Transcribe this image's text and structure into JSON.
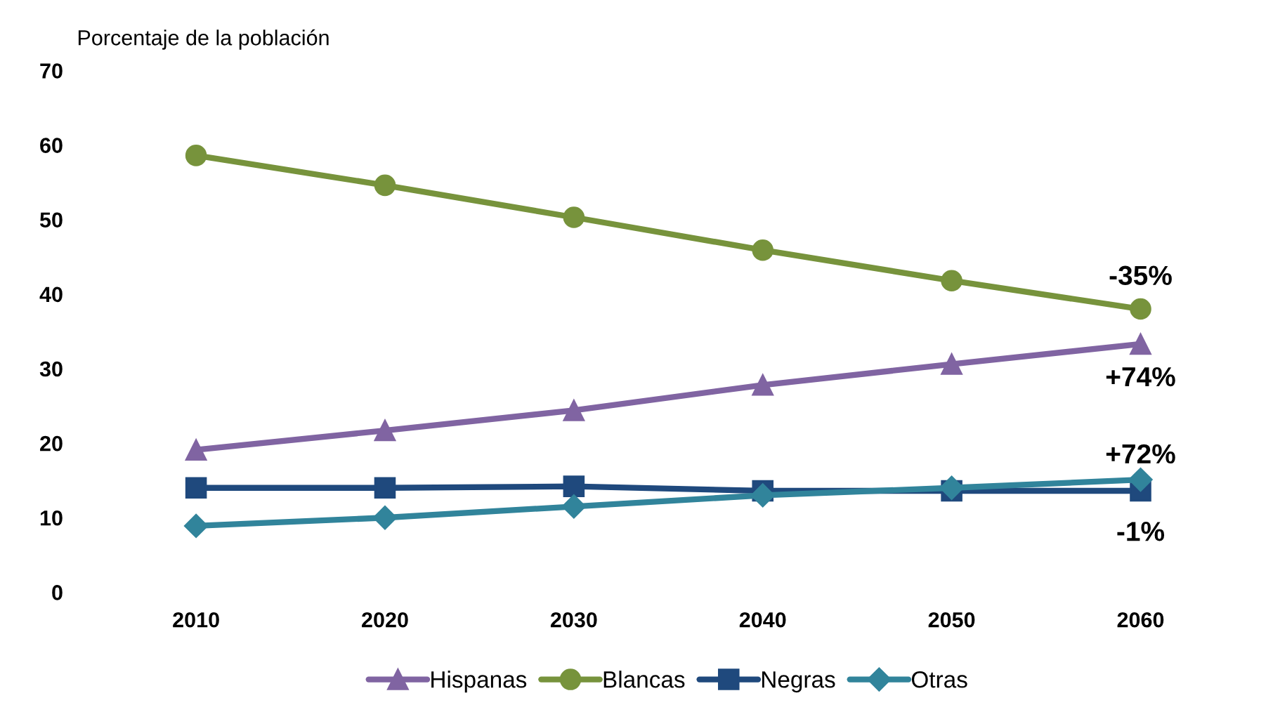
{
  "chart_data": {
    "type": "line",
    "ylabel": "Porcentaje de la población",
    "categories": [
      "2010",
      "2020",
      "2030",
      "2040",
      "2050",
      "2060"
    ],
    "ylim": [
      0,
      70
    ],
    "yticks": [
      0,
      10,
      20,
      30,
      40,
      50,
      60,
      70
    ],
    "grid": false,
    "legend": "bottom",
    "line_style": "solid",
    "series": [
      {
        "name": "Hispanas",
        "color": "#8064a2",
        "marker": "triangle",
        "values": [
          19.1,
          21.7,
          24.4,
          27.8,
          30.6,
          33.3
        ]
      },
      {
        "name": "Blancas",
        "color": "#77933c",
        "marker": "circle",
        "values": [
          58.6,
          54.6,
          50.3,
          45.9,
          41.8,
          38.0
        ]
      },
      {
        "name": "Negras",
        "color": "#1f497d",
        "marker": "square",
        "values": [
          14.0,
          14.0,
          14.2,
          13.6,
          13.6,
          13.6
        ]
      },
      {
        "name": "Otras",
        "color": "#31849b",
        "marker": "diamond",
        "values": [
          8.9,
          10.0,
          11.5,
          13.0,
          14.0,
          15.1
        ]
      }
    ],
    "annotations": [
      {
        "text": "-35%",
        "x": "2060",
        "y": 38.0
      },
      {
        "text": "+74%",
        "x": "2060",
        "y": 33.3
      },
      {
        "text": "+72%",
        "x": "2060",
        "y": 15.1
      },
      {
        "text": "-1%",
        "x": "2060",
        "y": 13.6
      }
    ]
  }
}
